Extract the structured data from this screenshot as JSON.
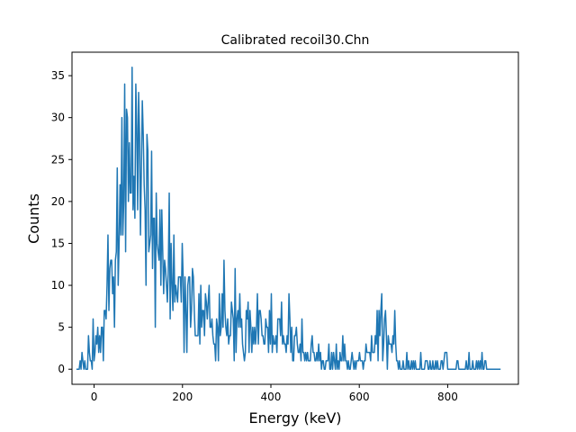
{
  "chart_data": {
    "type": "line",
    "title": "Calibrated recoil30.Chn",
    "xlabel": "Energy (keV)",
    "ylabel": "Counts",
    "xlim": [
      -50,
      960
    ],
    "ylim": [
      -1.8,
      37.8
    ],
    "x_ticks": [
      0,
      200,
      400,
      600,
      800
    ],
    "x_tick_labels": [
      "0",
      "200",
      "400",
      "600",
      "800"
    ],
    "y_ticks": [
      0,
      5,
      10,
      15,
      20,
      25,
      30,
      35
    ],
    "y_tick_labels": [
      "0",
      "5",
      "10",
      "15",
      "20",
      "25",
      "30",
      "35"
    ],
    "grid": false,
    "series_color": "#1f77b4",
    "energy_start_kev": -40,
    "energy_step_kev": 2.1,
    "envelope_knots": [
      [
        -40,
        0
      ],
      [
        -20,
        0.5
      ],
      [
        0,
        2
      ],
      [
        20,
        5
      ],
      [
        40,
        12
      ],
      [
        60,
        19
      ],
      [
        80,
        24
      ],
      [
        100,
        23
      ],
      [
        120,
        20
      ],
      [
        140,
        15
      ],
      [
        160,
        11
      ],
      [
        200,
        8
      ],
      [
        250,
        6
      ],
      [
        300,
        5.2
      ],
      [
        350,
        5
      ],
      [
        400,
        4.5
      ],
      [
        450,
        3
      ],
      [
        500,
        1.5
      ],
      [
        550,
        0.9
      ],
      [
        600,
        1.2
      ],
      [
        630,
        2.5
      ],
      [
        650,
        5
      ],
      [
        665,
        3.8
      ],
      [
        680,
        1.5
      ],
      [
        700,
        0.6
      ],
      [
        800,
        0.4
      ],
      [
        880,
        0.3
      ],
      [
        900,
        0
      ],
      [
        920,
        0
      ]
    ],
    "peak_points": [
      [
        85,
        36
      ],
      [
        70,
        34
      ],
      [
        95,
        34
      ],
      [
        100,
        33
      ],
      [
        110,
        32
      ],
      [
        75,
        30
      ],
      [
        120,
        28
      ],
      [
        130,
        26
      ],
      [
        150,
        19
      ],
      [
        140,
        21
      ],
      [
        180,
        16
      ],
      [
        200,
        15
      ],
      [
        225,
        11
      ],
      [
        260,
        10
      ],
      [
        290,
        9
      ],
      [
        330,
        9
      ],
      [
        370,
        9
      ],
      [
        400,
        9
      ],
      [
        470,
        6
      ],
      [
        650,
        9
      ],
      [
        640,
        7
      ],
      [
        660,
        7
      ]
    ],
    "seed": 7
  }
}
